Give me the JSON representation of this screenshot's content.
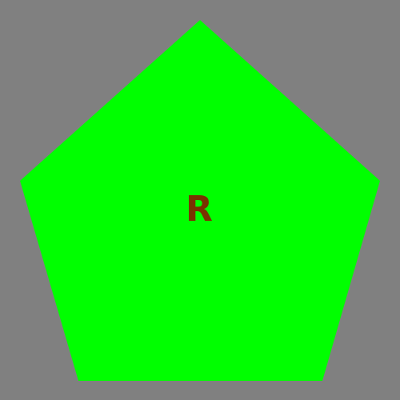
{
  "colors": {
    "background": "#808080",
    "pentagon_fill": "#00ff00",
    "letter": "#7a3300"
  },
  "shape": {
    "type": "pentagon",
    "label": "R"
  }
}
